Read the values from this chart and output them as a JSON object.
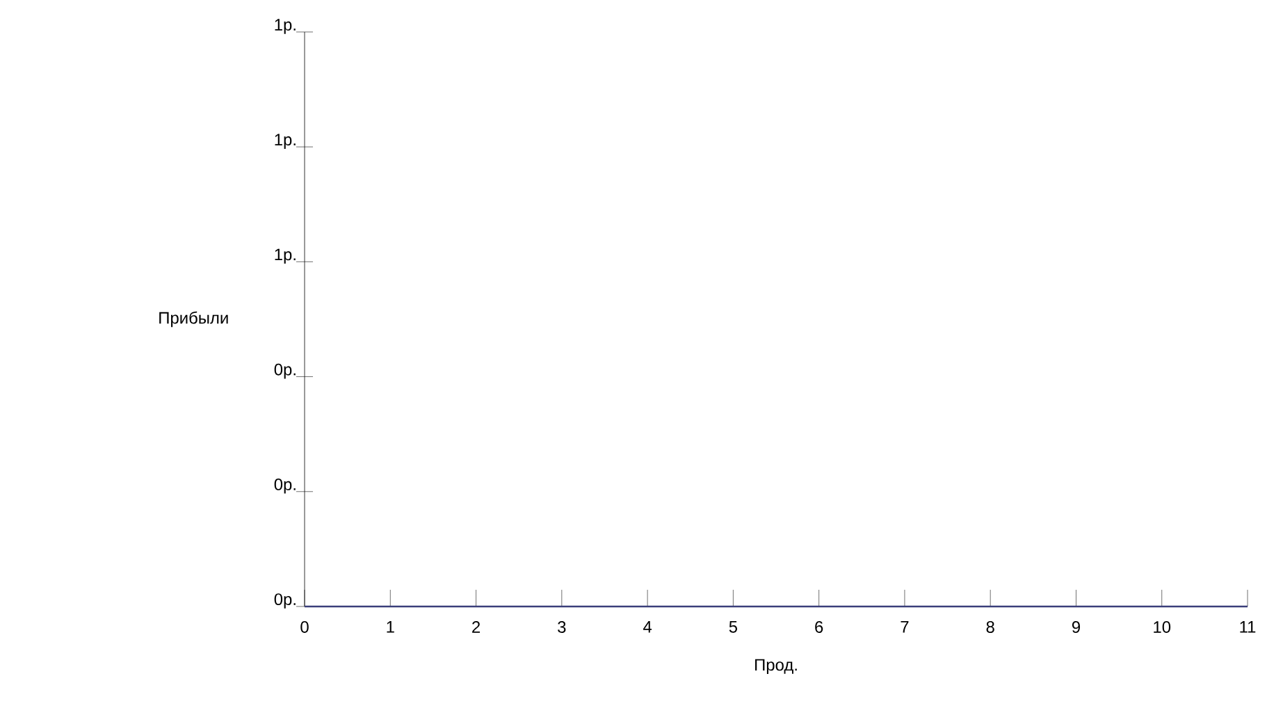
{
  "chart_data": {
    "type": "line",
    "xlabel": "Прод.",
    "ylabel": "Прибыли",
    "x": [
      0,
      11
    ],
    "series": [
      {
        "color": "#3b3f7a",
        "values": [
          0,
          0
        ]
      }
    ],
    "xlim": [
      0,
      11
    ],
    "xticks": [
      0,
      1,
      2,
      3,
      4,
      5,
      6,
      7,
      8,
      9,
      10,
      11
    ],
    "ylim": [
      0,
      1
    ],
    "yticks": [
      {
        "value": 0,
        "label": "0р."
      },
      {
        "value": 0.2,
        "label": "0р."
      },
      {
        "value": 0.4,
        "label": "0р."
      },
      {
        "value": 0.6,
        "label": "1р."
      },
      {
        "value": 0.8,
        "label": "1р."
      },
      {
        "value": 1,
        "label": "1р."
      }
    ],
    "grid": false,
    "marker": "none",
    "line_style": "solid"
  }
}
